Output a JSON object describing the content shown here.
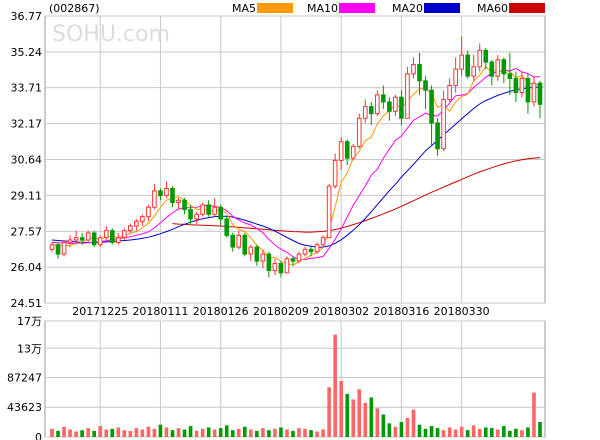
{
  "chart_data": {
    "type": "candlestick",
    "stock_code": "(002867)",
    "watermark": "SOHU.com",
    "price_axis": {
      "min": 24.51,
      "max": 36.77,
      "ticks": [
        "36.77",
        "35.24",
        "33.71",
        "32.17",
        "30.64",
        "29.11",
        "27.57",
        "26.04",
        "24.51"
      ]
    },
    "volume_axis": {
      "min": 0,
      "max": 170000,
      "ticks": [
        {
          "label": "17万",
          "value": 170000
        },
        {
          "label": "13万",
          "value": 130000
        },
        {
          "label": "87247",
          "value": 87247
        },
        {
          "label": "43623",
          "value": 43623
        },
        {
          "label": "0",
          "value": 0
        }
      ]
    },
    "date_labels": [
      {
        "label": "20171225",
        "index": 8
      },
      {
        "label": "20180111",
        "index": 18
      },
      {
        "label": "20180126",
        "index": 28
      },
      {
        "label": "20180209",
        "index": 38
      },
      {
        "label": "20180302",
        "index": 48
      },
      {
        "label": "20180316",
        "index": 58
      },
      {
        "label": "20180330",
        "index": 68
      }
    ],
    "legend": [
      {
        "name": "MA5",
        "color": "#ff9900"
      },
      {
        "name": "MA10",
        "color": "#ff00ff"
      },
      {
        "name": "MA20",
        "color": "#0000cc"
      },
      {
        "name": "MA60",
        "color": "#cc0000"
      }
    ],
    "up_color": "#ff3333",
    "down_color": "#009900",
    "candles": [
      [
        26.8,
        27.0,
        27.1,
        26.7
      ],
      [
        27.0,
        26.6,
        27.1,
        26.4
      ],
      [
        26.6,
        27.1,
        27.2,
        26.5
      ],
      [
        27.1,
        27.2,
        27.4,
        26.9
      ],
      [
        27.2,
        27.3,
        27.6,
        27.1
      ],
      [
        27.3,
        27.2,
        27.5,
        27.0
      ],
      [
        27.2,
        27.5,
        27.6,
        27.1
      ],
      [
        27.5,
        27.0,
        27.6,
        26.9
      ],
      [
        27.0,
        27.3,
        27.4,
        26.9
      ],
      [
        27.3,
        27.6,
        27.8,
        27.2
      ],
      [
        27.6,
        27.1,
        27.7,
        27.0
      ],
      [
        27.1,
        27.3,
        27.5,
        27.0
      ],
      [
        27.3,
        27.6,
        27.7,
        27.2
      ],
      [
        27.6,
        27.8,
        27.9,
        27.5
      ],
      [
        27.8,
        28.0,
        28.1,
        27.6
      ],
      [
        28.0,
        28.2,
        28.3,
        27.8
      ],
      [
        28.2,
        28.6,
        28.7,
        28.0
      ],
      [
        28.6,
        29.3,
        29.6,
        28.5
      ],
      [
        29.3,
        29.1,
        29.4,
        28.9
      ],
      [
        29.1,
        29.4,
        29.7,
        29.0
      ],
      [
        29.4,
        28.8,
        29.5,
        28.6
      ],
      [
        28.8,
        28.9,
        29.0,
        28.5
      ],
      [
        28.9,
        28.5,
        29.0,
        28.3
      ],
      [
        28.5,
        28.1,
        28.7,
        27.9
      ],
      [
        28.1,
        28.3,
        28.4,
        27.9
      ],
      [
        28.3,
        28.7,
        28.8,
        28.2
      ],
      [
        28.7,
        28.3,
        28.9,
        28.2
      ],
      [
        28.3,
        28.6,
        29.0,
        28.2
      ],
      [
        28.6,
        28.1,
        28.7,
        27.8
      ],
      [
        28.1,
        27.4,
        28.2,
        27.3
      ],
      [
        27.4,
        26.9,
        27.5,
        26.7
      ],
      [
        26.9,
        27.4,
        27.6,
        26.8
      ],
      [
        27.4,
        26.6,
        27.5,
        26.5
      ],
      [
        26.6,
        26.9,
        27.0,
        26.3
      ],
      [
        26.9,
        26.3,
        27.0,
        26.1
      ],
      [
        26.3,
        26.6,
        26.8,
        26.0
      ],
      [
        26.6,
        25.9,
        26.7,
        25.6
      ],
      [
        25.9,
        26.2,
        26.4,
        25.7
      ],
      [
        26.2,
        25.8,
        26.3,
        25.6
      ],
      [
        25.8,
        26.4,
        26.5,
        25.8
      ],
      [
        26.4,
        26.3,
        26.5,
        26.1
      ],
      [
        26.3,
        26.6,
        26.7,
        26.2
      ],
      [
        26.6,
        26.8,
        26.9,
        26.5
      ],
      [
        26.8,
        26.7,
        26.9,
        26.5
      ],
      [
        26.7,
        27.0,
        27.1,
        26.6
      ],
      [
        27.0,
        27.3,
        27.4,
        26.9
      ],
      [
        27.3,
        29.5,
        29.6,
        27.3
      ],
      [
        29.5,
        30.6,
        30.9,
        29.4
      ],
      [
        30.6,
        31.4,
        31.6,
        30.2
      ],
      [
        31.4,
        30.7,
        31.5,
        30.4
      ],
      [
        30.7,
        31.2,
        31.3,
        30.6
      ],
      [
        31.2,
        32.4,
        32.6,
        31.1
      ],
      [
        32.4,
        32.9,
        33.2,
        32.2
      ],
      [
        32.9,
        32.6,
        33.1,
        32.1
      ],
      [
        32.6,
        33.4,
        33.6,
        32.5
      ],
      [
        33.4,
        33.1,
        33.8,
        32.8
      ],
      [
        33.1,
        32.7,
        33.3,
        32.3
      ],
      [
        32.7,
        33.3,
        33.4,
        32.5
      ],
      [
        33.3,
        32.4,
        33.6,
        32.1
      ],
      [
        32.4,
        34.3,
        34.6,
        32.4
      ],
      [
        34.3,
        34.7,
        35.0,
        34.1
      ],
      [
        34.7,
        34.0,
        35.2,
        33.4
      ],
      [
        34.0,
        33.6,
        34.2,
        32.8
      ],
      [
        33.6,
        32.2,
        33.8,
        31.2
      ],
      [
        32.2,
        31.1,
        32.4,
        30.8
      ],
      [
        31.1,
        33.2,
        33.6,
        31.0
      ],
      [
        33.2,
        33.8,
        34.1,
        33.1
      ],
      [
        33.8,
        34.5,
        35.0,
        33.5
      ],
      [
        34.5,
        35.1,
        35.9,
        34.2
      ],
      [
        35.1,
        34.2,
        35.3,
        34.1
      ],
      [
        34.2,
        34.6,
        35.1,
        34.0
      ],
      [
        34.6,
        35.3,
        35.6,
        34.4
      ],
      [
        35.3,
        34.8,
        35.4,
        34.5
      ],
      [
        34.8,
        34.2,
        34.9,
        33.8
      ],
      [
        34.2,
        34.9,
        35.1,
        34.0
      ],
      [
        34.9,
        34.3,
        35.0,
        33.9
      ],
      [
        34.3,
        34.1,
        35.2,
        33.4
      ],
      [
        34.1,
        33.5,
        34.4,
        33.1
      ],
      [
        33.5,
        34.1,
        34.4,
        33.3
      ],
      [
        34.1,
        33.1,
        34.3,
        32.6
      ],
      [
        33.1,
        33.9,
        34.2,
        32.9
      ],
      [
        33.9,
        33.0,
        34.0,
        32.4
      ]
    ],
    "volumes": [
      12000,
      9000,
      15000,
      11000,
      8000,
      10000,
      13000,
      9000,
      16000,
      11000,
      12000,
      14000,
      10000,
      9000,
      13000,
      11000,
      15000,
      12000,
      18000,
      14000,
      10000,
      13000,
      11000,
      16000,
      9000,
      12000,
      14000,
      11000,
      13000,
      17000,
      10000,
      12000,
      15000,
      11000,
      9000,
      13000,
      10000,
      12000,
      14000,
      11000,
      9000,
      13000,
      12000,
      10000,
      8000,
      11000,
      73000,
      150000,
      82000,
      63000,
      55000,
      70000,
      50000,
      58000,
      42000,
      33000,
      20000,
      15000,
      22000,
      28000,
      40000,
      18000,
      12000,
      16000,
      13000,
      10000,
      14000,
      11000,
      15000,
      10000,
      17000,
      12000,
      14000,
      13000,
      11000,
      16000,
      9000,
      12000,
      10000,
      14000,
      65000,
      22000
    ],
    "ma5": [
      27.0,
      26.95,
      26.97,
      26.98,
      27.04,
      27.1,
      27.26,
      27.26,
      27.26,
      27.32,
      27.38,
      27.3,
      27.38,
      27.48,
      27.56,
      27.72,
      27.92,
      28.22,
      28.6,
      28.9,
      29.0,
      29.05,
      28.92,
      28.67,
      28.52,
      28.5,
      28.48,
      28.42,
      28.52,
      28.34,
      27.86,
      27.66,
      27.56,
      27.3,
      26.98,
      26.76,
      26.44,
      26.45,
      26.29,
      26.21,
      26.12,
      26.28,
      26.42,
      26.55,
      26.68,
      26.88,
      27.66,
      28.62,
      29.68,
      30.05,
      30.7,
      31.0,
      31.43,
      31.6,
      32.16,
      32.5,
      32.73,
      33.01,
      32.84,
      33.14,
      33.42,
      33.66,
      33.68,
      33.46,
      32.87,
      32.98,
      32.7,
      33.1,
      33.33,
      33.43,
      34.0,
      34.23,
      34.6,
      34.37,
      34.49,
      34.33,
      34.41,
      34.13,
      34.23,
      33.95,
      33.82,
      33.87
    ],
    "ma10": [
      27.1,
      27.08,
      27.07,
      27.06,
      27.06,
      27.06,
      27.08,
      27.1,
      27.13,
      27.17,
      27.22,
      27.26,
      27.3,
      27.34,
      27.4,
      27.46,
      27.55,
      27.72,
      27.94,
      28.16,
      28.36,
      28.52,
      28.58,
      28.58,
      28.6,
      28.66,
      28.68,
      28.64,
      28.58,
      28.46,
      28.22,
      28.05,
      27.93,
      27.84,
      27.7,
      27.51,
      27.23,
      26.99,
      26.81,
      26.67,
      26.49,
      26.36,
      26.37,
      26.42,
      26.45,
      26.5,
      26.84,
      27.24,
      27.67,
      28.18,
      28.69,
      29.1,
      29.52,
      29.97,
      30.22,
      30.7,
      31.08,
      31.45,
      31.65,
      31.98,
      32.32,
      32.46,
      32.62,
      32.52,
      32.5,
      32.74,
      33.05,
      33.36,
      33.39,
      33.45,
      33.72,
      33.93,
      34.15,
      34.32,
      34.38,
      34.47,
      34.42,
      34.53,
      34.38,
      34.31,
      34.16,
      34.18
    ],
    "ma20": [
      27.2,
      27.18,
      27.16,
      27.14,
      27.12,
      27.1,
      27.09,
      27.09,
      27.1,
      27.12,
      27.14,
      27.16,
      27.18,
      27.2,
      27.23,
      27.27,
      27.32,
      27.39,
      27.47,
      27.56,
      27.66,
      27.77,
      27.87,
      27.96,
      28.04,
      28.11,
      28.16,
      28.2,
      28.22,
      28.22,
      28.18,
      28.12,
      28.05,
      27.97,
      27.88,
      27.8,
      27.7,
      27.58,
      27.45,
      27.31,
      27.18,
      27.05,
      26.98,
      26.93,
      26.89,
      26.9,
      26.95,
      27.06,
      27.21,
      27.4,
      27.62,
      27.86,
      28.12,
      28.41,
      28.71,
      29.01,
      29.31,
      29.58,
      29.89,
      30.16,
      30.43,
      30.72,
      31.01,
      31.23,
      31.46,
      31.7,
      31.92,
      32.15,
      32.38,
      32.6,
      32.82,
      33.01,
      33.16,
      33.27,
      33.38,
      33.47,
      33.55,
      33.62,
      33.66,
      33.7,
      33.72,
      33.74
    ],
    "ma60": [
      null,
      null,
      null,
      null,
      null,
      null,
      null,
      null,
      null,
      null,
      null,
      null,
      null,
      null,
      null,
      null,
      null,
      null,
      null,
      null,
      27.9,
      27.88,
      27.87,
      27.85,
      27.84,
      27.83,
      27.82,
      27.81,
      27.8,
      27.78,
      27.76,
      27.74,
      27.72,
      27.7,
      27.68,
      27.66,
      27.64,
      27.62,
      27.6,
      27.58,
      27.56,
      27.55,
      27.54,
      27.54,
      27.55,
      27.57,
      27.6,
      27.65,
      27.71,
      27.78,
      27.86,
      27.94,
      28.03,
      28.12,
      28.22,
      28.32,
      28.42,
      28.53,
      28.64,
      28.76,
      28.88,
      29.0,
      29.12,
      29.24,
      29.35,
      29.46,
      29.57,
      29.68,
      29.79,
      29.9,
      30.01,
      30.11,
      30.2,
      30.29,
      30.37,
      30.45,
      30.52,
      30.58,
      30.63,
      30.67,
      30.7,
      30.72
    ]
  }
}
